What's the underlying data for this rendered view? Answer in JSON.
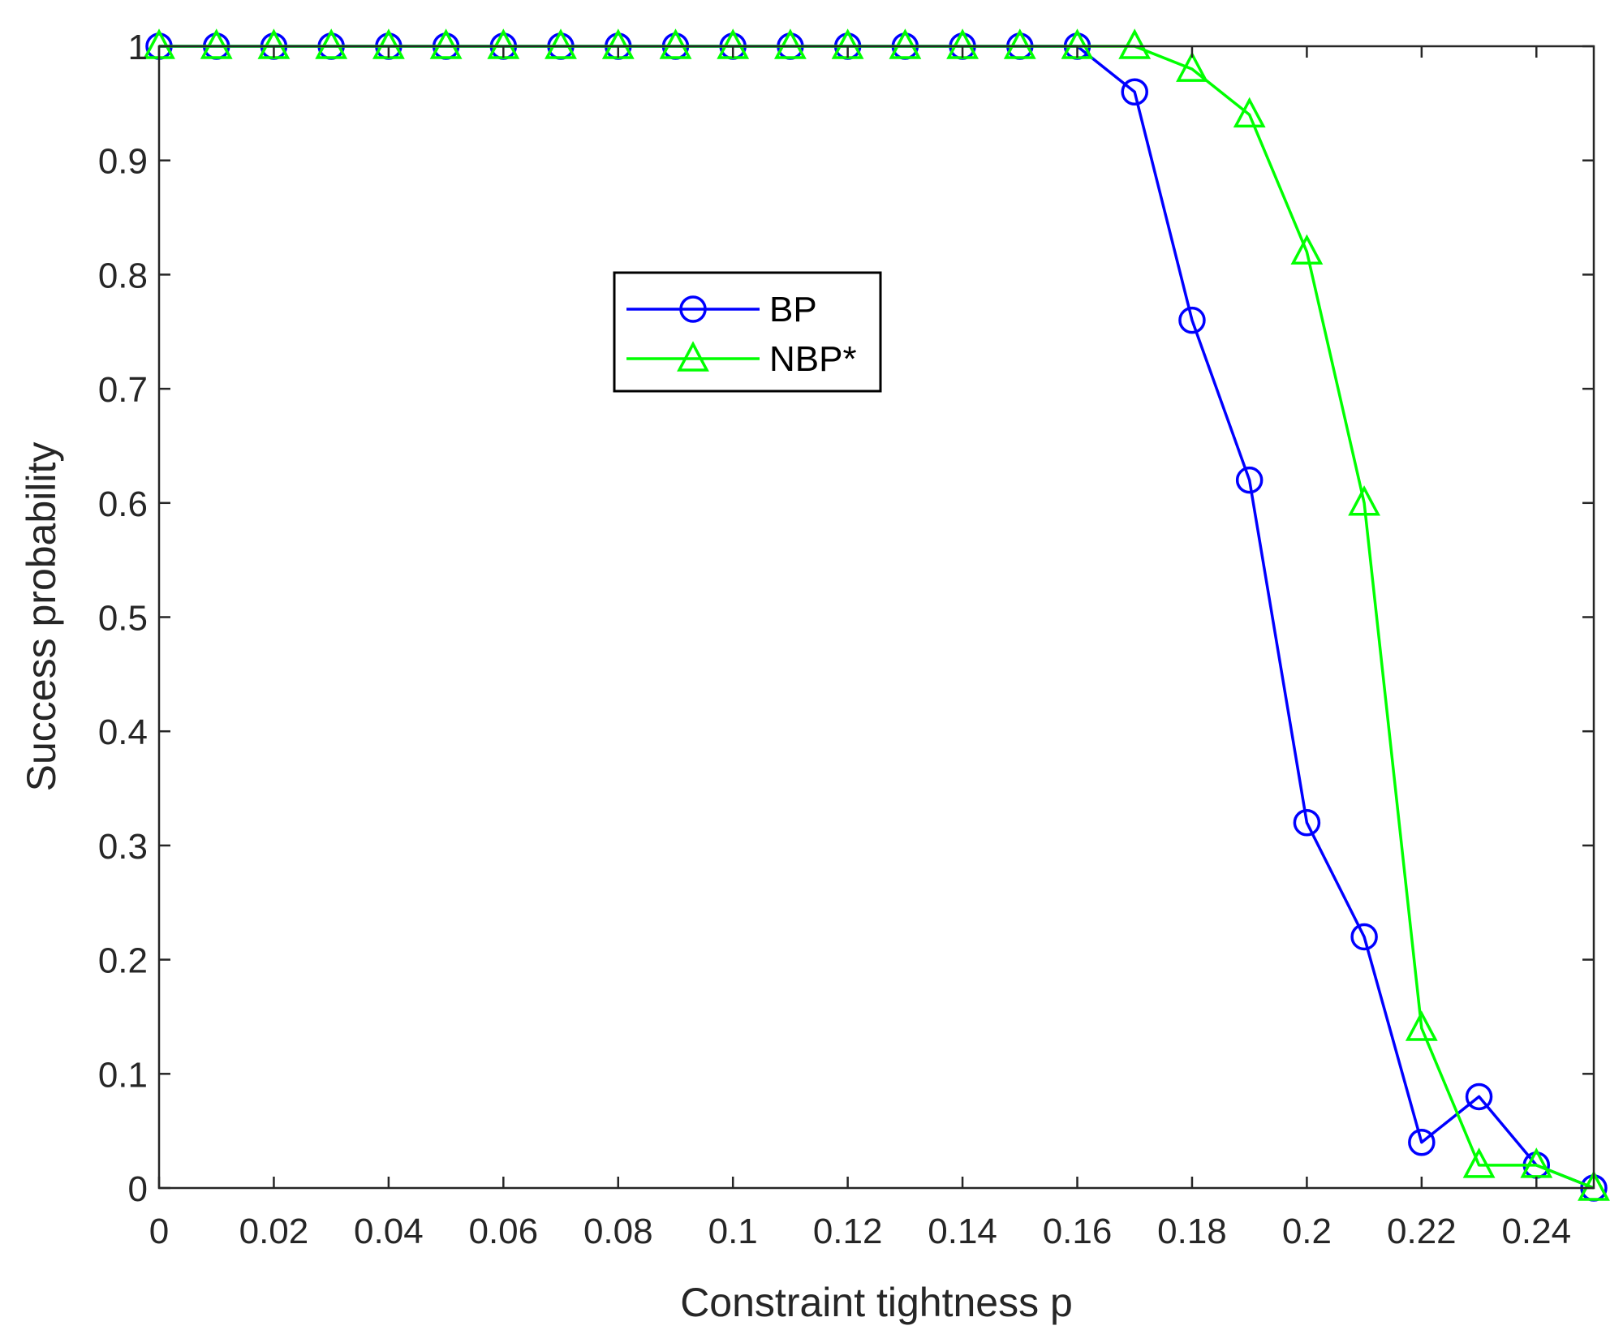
{
  "chart_data": {
    "type": "line",
    "title": "",
    "xlabel": "Constraint tightness p",
    "ylabel": "Success probability",
    "xlim": [
      0,
      0.25
    ],
    "ylim": [
      0,
      1
    ],
    "x": [
      0,
      0.01,
      0.02,
      0.03,
      0.04,
      0.05,
      0.06,
      0.07,
      0.08,
      0.09,
      0.1,
      0.11,
      0.12,
      0.13,
      0.14,
      0.15,
      0.16,
      0.17,
      0.18,
      0.19,
      0.2,
      0.21,
      0.22,
      0.23,
      0.24,
      0.25
    ],
    "xticks": [
      0,
      0.02,
      0.04,
      0.06,
      0.08,
      0.1,
      0.12,
      0.14,
      0.16,
      0.18,
      0.2,
      0.22,
      0.24
    ],
    "xtick_labels": [
      "0",
      "0.02",
      "0.04",
      "0.06",
      "0.08",
      "0.1",
      "0.12",
      "0.14",
      "0.16",
      "0.18",
      "0.2",
      "0.22",
      "0.24"
    ],
    "yticks": [
      0,
      0.1,
      0.2,
      0.3,
      0.4,
      0.5,
      0.6,
      0.7,
      0.8,
      0.9,
      1
    ],
    "ytick_labels": [
      "0",
      "0.1",
      "0.2",
      "0.3",
      "0.4",
      "0.5",
      "0.6",
      "0.7",
      "0.8",
      "0.9",
      "1"
    ],
    "grid": false,
    "legend_position": "upper-center",
    "series": [
      {
        "name": "BP",
        "color": "#0000ff",
        "marker": "circle",
        "values": [
          1,
          1,
          1,
          1,
          1,
          1,
          1,
          1,
          1,
          1,
          1,
          1,
          1,
          1,
          1,
          1,
          1,
          0.96,
          0.76,
          0.62,
          0.32,
          0.22,
          0.04,
          0.08,
          0.02,
          0
        ]
      },
      {
        "name": "NBP*",
        "color": "#00ff00",
        "marker": "triangle",
        "values": [
          1,
          1,
          1,
          1,
          1,
          1,
          1,
          1,
          1,
          1,
          1,
          1,
          1,
          1,
          1,
          1,
          1,
          1,
          0.98,
          0.94,
          0.82,
          0.6,
          0.14,
          0.02,
          0.02,
          0
        ]
      }
    ]
  }
}
